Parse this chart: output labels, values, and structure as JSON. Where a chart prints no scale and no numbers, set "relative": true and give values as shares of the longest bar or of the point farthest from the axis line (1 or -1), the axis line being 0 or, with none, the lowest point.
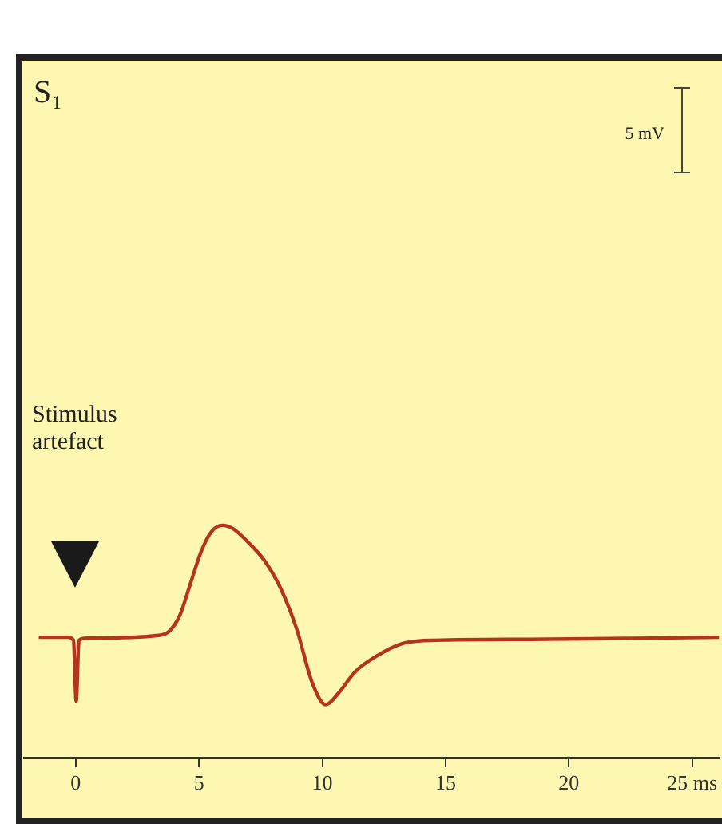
{
  "chart_data": {
    "type": "line",
    "title": "S₁",
    "relative": true,
    "x": [
      -1.5,
      -0.3,
      -0.09,
      0.02,
      0.13,
      0.45,
      3.36,
      3.79,
      4.22,
      4.65,
      5.08,
      5.51,
      5.94,
      6.37,
      7.02,
      7.67,
      8.31,
      8.96,
      9.6,
      10.14,
      10.68,
      11.33,
      12.19,
      13.26,
      14.56,
      18.43,
      26.1
    ],
    "series": [
      {
        "color": "#b5341c",
        "values": [
          0.518,
          0.518,
          0.505,
          0.242,
          0.505,
          0.514,
          0.526,
          0.544,
          0.612,
          0.748,
          0.885,
          0.973,
          1,
          0.986,
          0.924,
          0.846,
          0.729,
          0.554,
          0.32,
          0.228,
          0.28,
          0.369,
          0.436,
          0.491,
          0.505,
          0.509,
          0.518
        ]
      }
    ],
    "xlim": [
      -2.1,
      26.1
    ],
    "xticks": [
      0,
      5,
      10,
      15,
      20,
      {
        "value": 25,
        "label": "25 ms"
      }
    ],
    "tick_labels": "x",
    "marker": "none",
    "annotations": [
      "Stimulus artefact",
      "5 mV"
    ]
  }
}
